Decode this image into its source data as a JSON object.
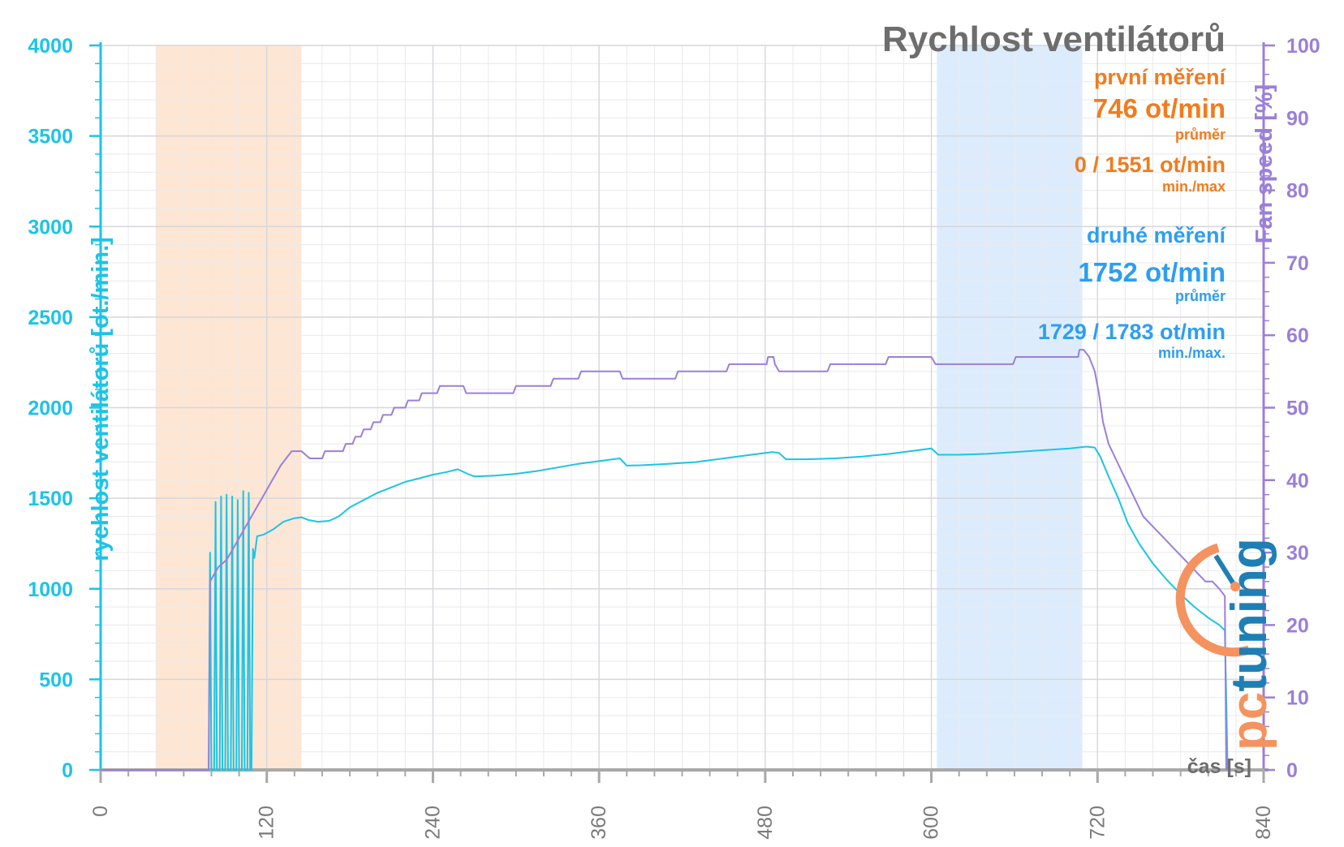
{
  "chart_data": {
    "type": "line",
    "title": "Rychlost ventilátorů",
    "xlabel": "čas [s]",
    "ylabel_left": "rychlost ventilátorů [ot./min.]",
    "ylabel_right": "Fan speed [%]",
    "xlim": [
      0,
      840
    ],
    "ylim_left": [
      0,
      4000
    ],
    "ylim_right": [
      0,
      100
    ],
    "x_ticks": [
      "0",
      "120",
      "240",
      "360",
      "480",
      "600",
      "720",
      "840"
    ],
    "y_ticks_left": [
      "0",
      "500",
      "1000",
      "1500",
      "2000",
      "2500",
      "3000",
      "3500",
      "4000"
    ],
    "y_ticks_right": [
      "0",
      "10",
      "20",
      "30",
      "40",
      "50",
      "60",
      "70",
      "80",
      "90",
      "100"
    ],
    "grid": true,
    "shaded_regions": [
      {
        "from": 40,
        "to": 145,
        "color": "#fde6d4"
      },
      {
        "from": 604,
        "to": 709,
        "color": "#dcecfd"
      }
    ],
    "series": [
      {
        "axis": "left",
        "color": "#1cc4e6",
        "points": [
          [
            0,
            0
          ],
          [
            77,
            0
          ],
          [
            78,
            0
          ],
          [
            79,
            1200
          ],
          [
            80,
            0
          ],
          [
            82,
            0
          ],
          [
            83,
            1480
          ],
          [
            84,
            0
          ],
          [
            86,
            0
          ],
          [
            87,
            1510
          ],
          [
            88,
            0
          ],
          [
            90,
            0
          ],
          [
            91,
            1520
          ],
          [
            92,
            0
          ],
          [
            94,
            0
          ],
          [
            95,
            1510
          ],
          [
            96,
            0
          ],
          [
            98,
            0
          ],
          [
            99,
            1490
          ],
          [
            100,
            0
          ],
          [
            102,
            0
          ],
          [
            103,
            1540
          ],
          [
            104,
            0
          ],
          [
            106,
            0
          ],
          [
            107,
            1530
          ],
          [
            108,
            0
          ],
          [
            109,
            0
          ],
          [
            110,
            1220
          ],
          [
            111,
            1170
          ],
          [
            113,
            1290
          ],
          [
            118,
            1300
          ],
          [
            125,
            1330
          ],
          [
            132,
            1370
          ],
          [
            140,
            1390
          ],
          [
            145,
            1395
          ],
          [
            150,
            1380
          ],
          [
            157,
            1370
          ],
          [
            165,
            1375
          ],
          [
            172,
            1400
          ],
          [
            180,
            1450
          ],
          [
            190,
            1490
          ],
          [
            200,
            1530
          ],
          [
            210,
            1560
          ],
          [
            220,
            1590
          ],
          [
            230,
            1610
          ],
          [
            240,
            1630
          ],
          [
            250,
            1645
          ],
          [
            258,
            1660
          ],
          [
            265,
            1635
          ],
          [
            270,
            1620
          ],
          [
            285,
            1625
          ],
          [
            300,
            1635
          ],
          [
            315,
            1650
          ],
          [
            330,
            1670
          ],
          [
            345,
            1690
          ],
          [
            360,
            1705
          ],
          [
            370,
            1715
          ],
          [
            375,
            1720
          ],
          [
            380,
            1680
          ],
          [
            390,
            1682
          ],
          [
            410,
            1690
          ],
          [
            430,
            1700
          ],
          [
            450,
            1720
          ],
          [
            470,
            1740
          ],
          [
            485,
            1755
          ],
          [
            490,
            1750
          ],
          [
            495,
            1715
          ],
          [
            510,
            1715
          ],
          [
            530,
            1720
          ],
          [
            550,
            1730
          ],
          [
            570,
            1745
          ],
          [
            590,
            1765
          ],
          [
            600,
            1775
          ],
          [
            605,
            1740
          ],
          [
            620,
            1740
          ],
          [
            640,
            1745
          ],
          [
            660,
            1755
          ],
          [
            680,
            1765
          ],
          [
            700,
            1775
          ],
          [
            712,
            1785
          ],
          [
            718,
            1780
          ],
          [
            722,
            1730
          ],
          [
            728,
            1620
          ],
          [
            735,
            1500
          ],
          [
            742,
            1360
          ],
          [
            750,
            1250
          ],
          [
            760,
            1140
          ],
          [
            770,
            1050
          ],
          [
            780,
            970
          ],
          [
            790,
            900
          ],
          [
            800,
            840
          ],
          [
            808,
            800
          ],
          [
            812,
            770
          ],
          [
            813,
            400
          ],
          [
            814,
            0
          ]
        ]
      },
      {
        "axis": "right",
        "color": "#9b7fd9",
        "points": [
          [
            0,
            0
          ],
          [
            78,
            0
          ],
          [
            79,
            26
          ],
          [
            82,
            27
          ],
          [
            85,
            28
          ],
          [
            88,
            28.5
          ],
          [
            91,
            29
          ],
          [
            94,
            30
          ],
          [
            97,
            31
          ],
          [
            100,
            32
          ],
          [
            103,
            33
          ],
          [
            106,
            34
          ],
          [
            109,
            35
          ],
          [
            112,
            36
          ],
          [
            115,
            37
          ],
          [
            118,
            38
          ],
          [
            121,
            39
          ],
          [
            124,
            40
          ],
          [
            127,
            41
          ],
          [
            130,
            42
          ],
          [
            134,
            43
          ],
          [
            138,
            44
          ],
          [
            145,
            44
          ],
          [
            151,
            43
          ],
          [
            160,
            43
          ],
          [
            162,
            44
          ],
          [
            175,
            44
          ],
          [
            177,
            45
          ],
          [
            182,
            45
          ],
          [
            184,
            46
          ],
          [
            188,
            46
          ],
          [
            190,
            47
          ],
          [
            195,
            47
          ],
          [
            197,
            48
          ],
          [
            202,
            48
          ],
          [
            204,
            49
          ],
          [
            210,
            49
          ],
          [
            212,
            50
          ],
          [
            220,
            50
          ],
          [
            222,
            51
          ],
          [
            230,
            51
          ],
          [
            232,
            52
          ],
          [
            243,
            52
          ],
          [
            245,
            53
          ],
          [
            262,
            53
          ],
          [
            264,
            52
          ],
          [
            298,
            52
          ],
          [
            300,
            53
          ],
          [
            325,
            53
          ],
          [
            327,
            54
          ],
          [
            345,
            54
          ],
          [
            347,
            55
          ],
          [
            375,
            55
          ],
          [
            377,
            54
          ],
          [
            415,
            54
          ],
          [
            417,
            55
          ],
          [
            452,
            55
          ],
          [
            454,
            56
          ],
          [
            481,
            56
          ],
          [
            482,
            57
          ],
          [
            486,
            57
          ],
          [
            487,
            56
          ],
          [
            490,
            55
          ],
          [
            525,
            55
          ],
          [
            527,
            56
          ],
          [
            567,
            56
          ],
          [
            569,
            57
          ],
          [
            600,
            57
          ],
          [
            603,
            56
          ],
          [
            659,
            56
          ],
          [
            661,
            57
          ],
          [
            706,
            57
          ],
          [
            707,
            58
          ],
          [
            710,
            58
          ],
          [
            714,
            57
          ],
          [
            718,
            55
          ],
          [
            721,
            52
          ],
          [
            724,
            48
          ],
          [
            728,
            45
          ],
          [
            733,
            43
          ],
          [
            738,
            41
          ],
          [
            743,
            39
          ],
          [
            748,
            37
          ],
          [
            753,
            35
          ],
          [
            758,
            34
          ],
          [
            763,
            33
          ],
          [
            768,
            32
          ],
          [
            773,
            31
          ],
          [
            778,
            30
          ],
          [
            783,
            29
          ],
          [
            788,
            28
          ],
          [
            793,
            27
          ],
          [
            798,
            26
          ],
          [
            803,
            26
          ],
          [
            808,
            25
          ],
          [
            812,
            24
          ],
          [
            813,
            0
          ]
        ]
      }
    ]
  },
  "annotations": {
    "first": {
      "heading": "první měření",
      "avg_value": "746 ot/min",
      "avg_label": "průměr",
      "minmax_value": "0 / 1551 ot/min",
      "minmax_label": "min./max",
      "color": "#f07c1e"
    },
    "second": {
      "heading": "druhé měření",
      "avg_value": "1752 ot/min",
      "avg_label": "průměr",
      "minmax_value": "1729 / 1783 ot/min",
      "minmax_label": "min./max.",
      "color": "#2e9ef0"
    }
  },
  "logo": {
    "text": "pctuning",
    "colors": {
      "accent": "#f4935f",
      "main": "#1f7fb4"
    }
  }
}
